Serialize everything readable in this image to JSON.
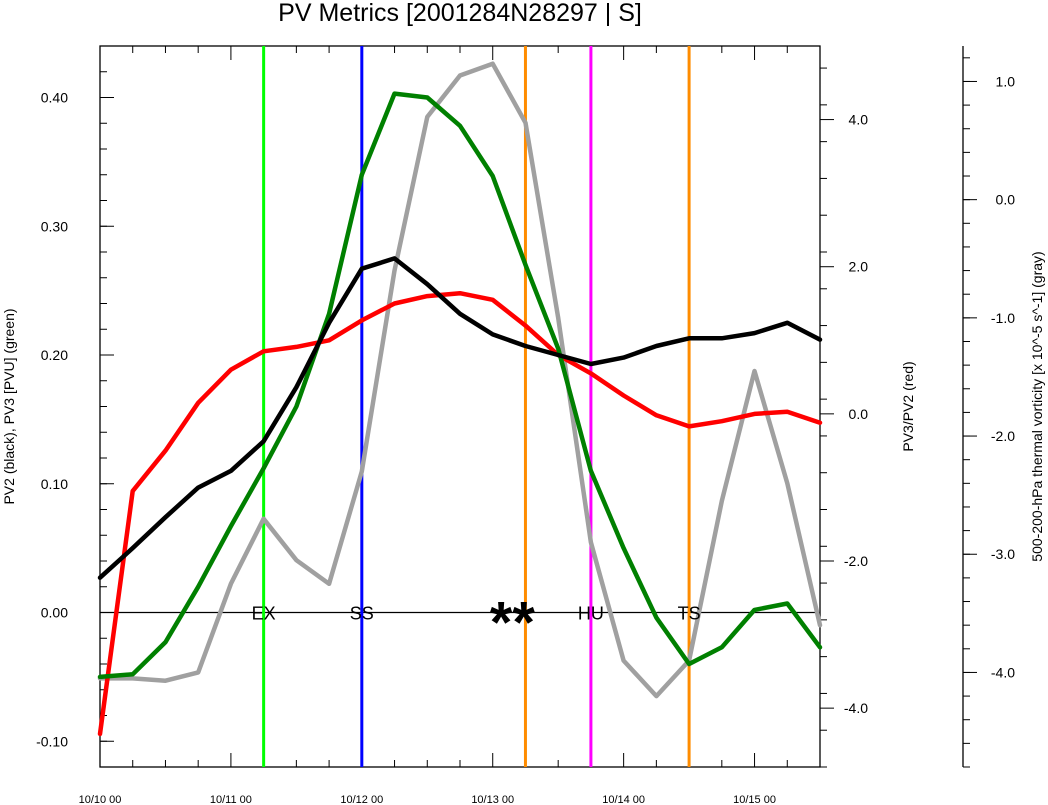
{
  "chart_data": {
    "type": "line",
    "title": "PV Metrics [2001284N28297 | S]",
    "x_tick_labels": [
      "10/10 00",
      "10/11 00",
      "10/12 00",
      "10/13 00",
      "10/14 00",
      "10/15 00"
    ],
    "x_range_days": [
      0,
      5.5
    ],
    "left_axis": {
      "label": "PV2 (black), PV3 [PVU] (green)",
      "range": [
        -0.12,
        0.44
      ],
      "ticks": [
        -0.1,
        0.0,
        0.1,
        0.2,
        0.3,
        0.4
      ],
      "tick_labels": [
        "-0.10",
        "0.00",
        "0.10",
        "0.20",
        "0.30",
        "0.40"
      ]
    },
    "middle_axis": {
      "label": "PV3/PV2 (red)",
      "range": [
        -4.8,
        5.0
      ],
      "ticks": [
        -4.0,
        -2.0,
        0.0,
        2.0,
        4.0
      ],
      "tick_labels": [
        "-4.0",
        "-2.0",
        "0.0",
        "2.0",
        "4.0"
      ]
    },
    "right_axis": {
      "label": "500-200-hPa thermal vorticity [x 10^-5 s^-1] (gray)",
      "range": [
        -4.8,
        1.3
      ],
      "ticks": [
        -4.0,
        -3.0,
        -2.0,
        -1.0,
        0.0,
        1.0
      ],
      "tick_labels": [
        "-4.0",
        "-3.0",
        "-2.0",
        "-1.0",
        "0.0",
        "1.0"
      ]
    },
    "x": [
      0,
      0.25,
      0.5,
      0.75,
      1.0,
      1.25,
      1.5,
      1.75,
      2.0,
      2.25,
      2.5,
      2.75,
      3.0,
      3.25,
      3.5,
      3.75,
      4.0,
      4.25,
      4.5,
      4.75,
      5.0,
      5.25,
      5.5
    ],
    "series": [
      {
        "key": "pv2",
        "color": "#000000",
        "axis": "left",
        "values": [
          0.027,
          0.05,
          0.074,
          0.097,
          0.11,
          0.133,
          0.175,
          0.225,
          0.267,
          0.275,
          0.255,
          0.232,
          0.216,
          0.207,
          0.2,
          0.193,
          0.198,
          0.207,
          0.213,
          0.213,
          0.217,
          0.225,
          0.212
        ]
      },
      {
        "key": "pv3",
        "color": "#008000",
        "axis": "left",
        "values": [
          -0.05,
          -0.048,
          -0.023,
          0.02,
          0.067,
          0.112,
          0.16,
          0.232,
          0.34,
          0.403,
          0.4,
          0.378,
          0.339,
          0.27,
          0.205,
          0.11,
          0.05,
          -0.004,
          -0.04,
          -0.027,
          0.002,
          0.007,
          -0.027
        ]
      },
      {
        "key": "ratio",
        "color": "#ff0000",
        "axis": "middle",
        "values": [
          -4.35,
          -1.05,
          -0.5,
          0.15,
          0.6,
          0.85,
          0.91,
          1.0,
          1.27,
          1.5,
          1.6,
          1.64,
          1.55,
          1.2,
          0.8,
          0.55,
          0.25,
          -0.02,
          -0.17,
          -0.1,
          0.0,
          0.03,
          -0.12
        ]
      },
      {
        "key": "vorticity",
        "color": "#a0a0a0",
        "axis": "right",
        "values": [
          -4.05,
          -4.05,
          -4.07,
          -4.0,
          -3.25,
          -2.7,
          -3.05,
          -3.25,
          -2.3,
          -0.6,
          0.7,
          1.05,
          1.15,
          0.65,
          -1.0,
          -2.9,
          -3.9,
          -4.2,
          -3.9,
          -2.55,
          -1.45,
          -2.4,
          -3.6
        ]
      }
    ],
    "events": [
      {
        "label": "EX",
        "x": 1.25,
        "color": "#00ff00"
      },
      {
        "label": "SS",
        "x": 2.0,
        "color": "#0000ff"
      },
      {
        "label": "",
        "x": 3.25,
        "color": "#ff8c00"
      },
      {
        "label": "HU",
        "x": 3.75,
        "color": "#ff00ff"
      },
      {
        "label": "TS",
        "x": 4.5,
        "color": "#ff8c00"
      }
    ],
    "star_markers": {
      "text": "**",
      "x": 3.15,
      "y": 0.0
    },
    "zero_line": true
  }
}
